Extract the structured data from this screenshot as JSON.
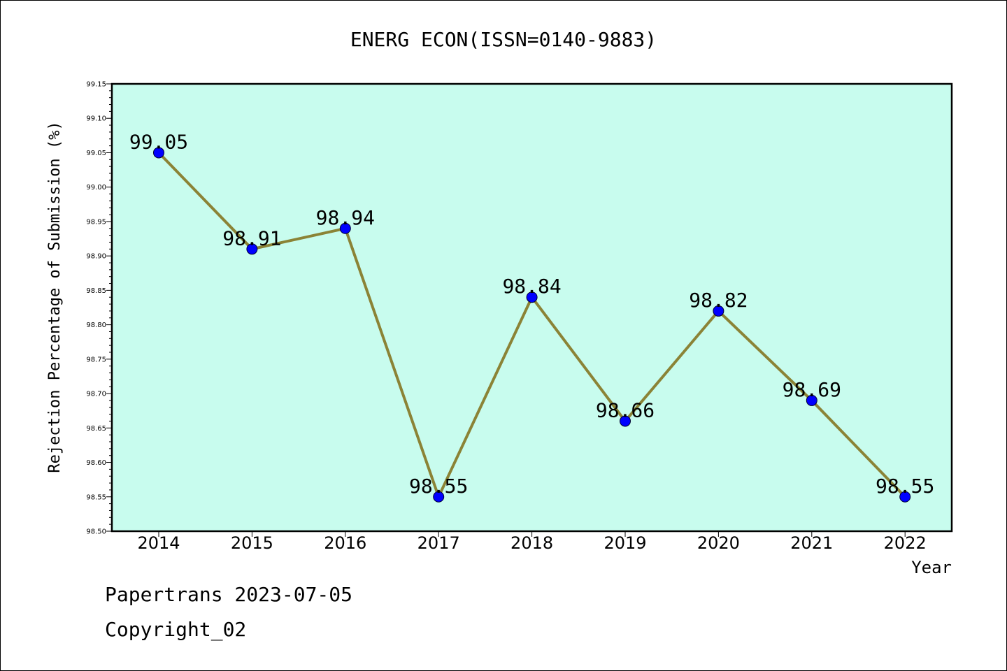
{
  "chart_data": {
    "type": "line",
    "title": "ENERG ECON(ISSN=0140-9883)",
    "xlabel": "Year",
    "ylabel": "Rejection Percentage of Submission (%)",
    "x": [
      "2014",
      "2015",
      "2016",
      "2017",
      "2018",
      "2019",
      "2020",
      "2021",
      "2022"
    ],
    "values": [
      99.05,
      98.91,
      98.94,
      98.55,
      98.84,
      98.66,
      98.82,
      98.69,
      98.55
    ],
    "data_labels": [
      "99.05",
      "98.91",
      "98.94",
      "98.55",
      "98.84",
      "98.66",
      "98.82",
      "98.69",
      "98.55"
    ],
    "ylim": [
      98.5,
      99.15
    ],
    "yticks": [
      "98.50",
      "98.55",
      "98.60",
      "98.65",
      "98.70",
      "98.75",
      "98.80",
      "98.85",
      "98.90",
      "98.95",
      "99.00",
      "99.05",
      "99.10",
      "99.15"
    ],
    "grid": false,
    "colors": {
      "plot_bg": "#c8fcee",
      "line": "#8b8336",
      "marker": "#0000ff"
    }
  },
  "footer": {
    "line1": "Papertrans 2023-07-05",
    "line2": "Copyright_02"
  }
}
